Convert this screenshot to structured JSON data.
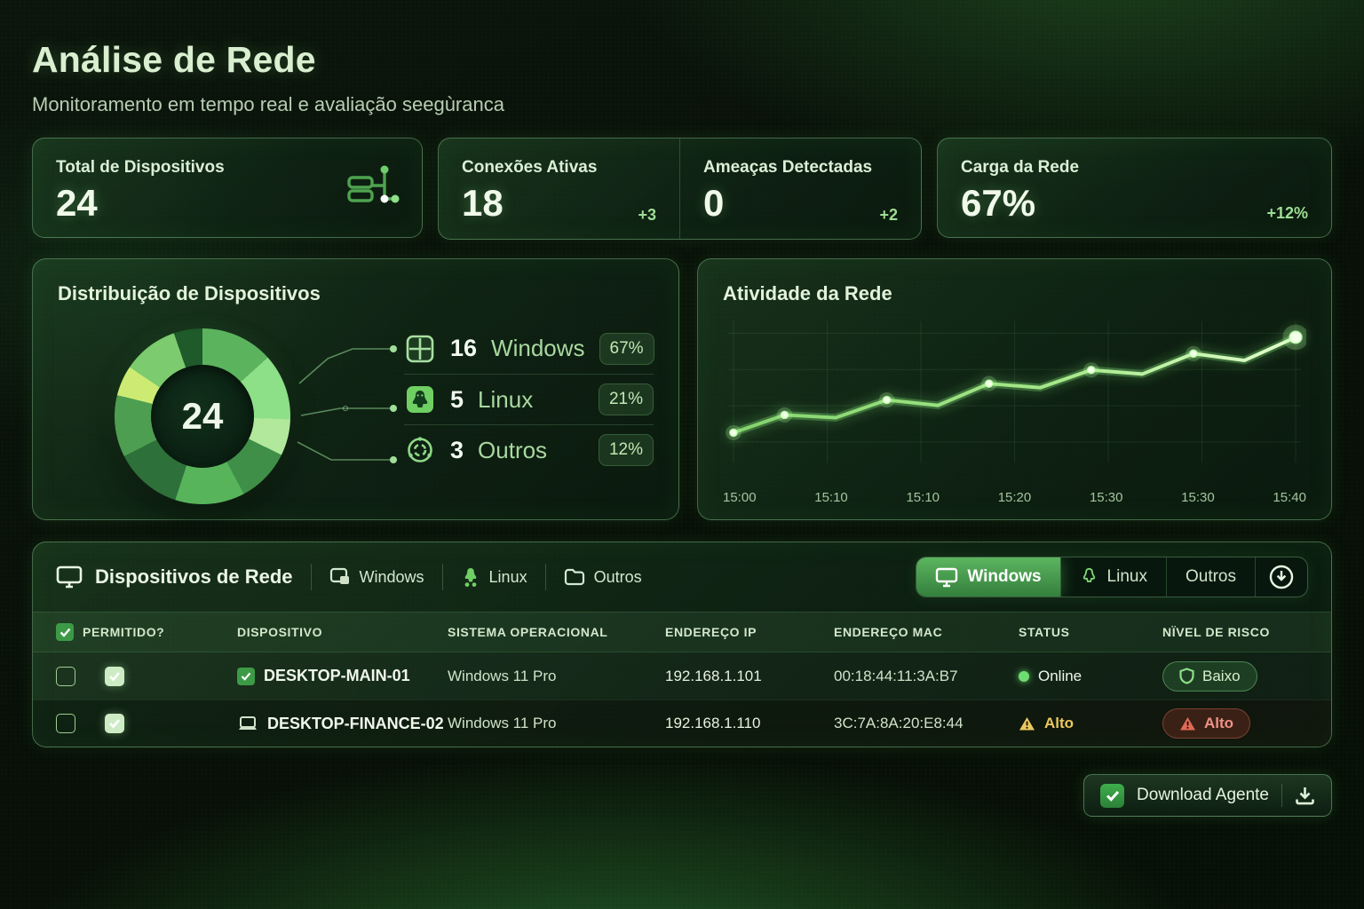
{
  "header": {
    "title": "Análise de Rede",
    "subtitle": "Monitoramento em tempo real e avaliação seegùranca"
  },
  "stats": {
    "total": {
      "label": "Total de Dispositivos",
      "value": "24",
      "icon": "network-devices-icon"
    },
    "connections": {
      "label": "Conexões Ativas",
      "value": "18",
      "delta": "+3"
    },
    "threats": {
      "label": "Ameaças Detectadas",
      "value": "0",
      "delta": "+2"
    },
    "load": {
      "label": "Carga da Rede",
      "value": "67%",
      "delta": "+12%"
    }
  },
  "distribution": {
    "title": "Distribuição de Dispositivos",
    "center_total": "24",
    "legend": [
      {
        "count": "16",
        "name": "Windows",
        "percent": "67%",
        "icon": "windows-icon"
      },
      {
        "count": "5",
        "name": "Linux",
        "percent": "21%",
        "icon": "linux-icon"
      },
      {
        "count": "3",
        "name": "Outros",
        "percent": "12%",
        "icon": "gear-icon"
      }
    ]
  },
  "activity": {
    "title": "Atividade da Rede",
    "x_labels": [
      "15:00",
      "15:10",
      "15:10",
      "15:20",
      "15:30",
      "15:30",
      "15:40"
    ]
  },
  "chart_data": [
    {
      "type": "pie",
      "title": "Distribuição de Dispositivos",
      "labels": [
        "Windows",
        "Linux",
        "Outros"
      ],
      "values": [
        16,
        5,
        3
      ],
      "percents": [
        67,
        21,
        12
      ],
      "total": 24,
      "legend_position": "right",
      "visual_segments": [
        {
          "color": "#5cb35e",
          "to": 48
        },
        {
          "color": "#8ddf88",
          "to": 92
        },
        {
          "color": "#b2e89c",
          "to": 116
        },
        {
          "color": "#3f8f48",
          "to": 152
        },
        {
          "color": "#58b45a",
          "to": 198
        },
        {
          "color": "#2e7039",
          "to": 243
        },
        {
          "color": "#4e9e51",
          "to": 284
        },
        {
          "color": "#cdeb72",
          "to": 304
        },
        {
          "color": "#7ccb6e",
          "to": 341
        },
        {
          "color": "#1f5a2a",
          "to": 360
        }
      ]
    },
    {
      "type": "line",
      "title": "Atividade da Rede",
      "x": [
        "15:00",
        "15:10",
        "15:10",
        "15:20",
        "15:30",
        "15:30",
        "15:40"
      ],
      "values": [
        22,
        35,
        33,
        46,
        42,
        58,
        55,
        68,
        65,
        80,
        75,
        92
      ],
      "ylim": [
        0,
        100
      ],
      "grid": true,
      "line_color": "#a8e98b",
      "highlight_points": [
        0,
        1,
        3,
        5,
        7,
        9,
        11
      ]
    }
  ],
  "devices": {
    "title": "Dispositivos de Rede",
    "filters": [
      {
        "label": "Windows"
      },
      {
        "label": "Linux"
      },
      {
        "label": "Outros"
      }
    ],
    "view_tabs": {
      "windows": "Windows",
      "linux": "Linux",
      "outros": "Outros"
    },
    "columns": [
      "PERMITIDO?",
      "DISPOSITIVO",
      "SISTEMA OPERACIONAL",
      "ENDEREÇO IP",
      "ENDEREÇO MAC",
      "STATUS",
      "NÏVEL DE RISCO"
    ],
    "rows": [
      {
        "name": "DESKTOP-MAIN-01",
        "os": "Windows 11 Pro",
        "ip": "192.168.1.101",
        "mac": "00:18:44:11:3A:B7",
        "status": "Online",
        "risk": "Baixo"
      },
      {
        "name": "DESKTOP-FINANCE-02",
        "os": "Windows 11 Pro",
        "ip": "192.168.1.110",
        "mac": "3C:7A:8A:20:E8:44",
        "status": "Alto",
        "risk": "Alto"
      }
    ],
    "download_button": "Download Agente"
  },
  "colors": {
    "accent": "#8fe08a",
    "risk_low_text": "#d8f0cd",
    "risk_high_text": "#ef9287",
    "warning": "#eac85f",
    "online": "#6fdc6f"
  }
}
